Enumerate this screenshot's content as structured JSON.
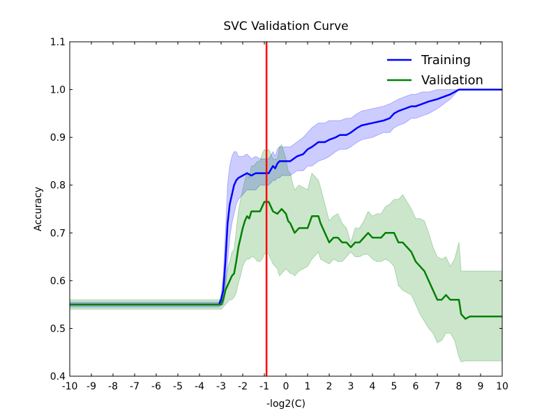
{
  "chart_data": {
    "type": "line",
    "title": "SVC Validation Curve",
    "xlabel": "-log2(C)",
    "ylabel": "Accuracy",
    "xlim": [
      -10,
      10
    ],
    "ylim": [
      0.4,
      1.1
    ],
    "grid": false,
    "legend_position": "top-right",
    "x_ticks": [
      -10,
      -9,
      -8,
      -7,
      -6,
      -5,
      -4,
      -3,
      -2,
      -1,
      0,
      1,
      2,
      3,
      4,
      5,
      6,
      7,
      8,
      9,
      10
    ],
    "x_tick_labels": [
      "-10",
      "-9",
      "-8",
      "-7",
      "-6",
      "-5",
      "-4",
      "-3",
      "-2",
      "-1",
      "0",
      "1",
      "2",
      "3",
      "4",
      "5",
      "6",
      "7",
      "8",
      "9",
      "10"
    ],
    "y_ticks": [
      0.4,
      0.5,
      0.6,
      0.7,
      0.8,
      0.9,
      1.0,
      1.1
    ],
    "y_tick_labels": [
      "0.4",
      "0.5",
      "0.6",
      "0.7",
      "0.8",
      "0.9",
      "1.0",
      "1.1"
    ],
    "vline": {
      "x": -0.9,
      "color": "#ff0000"
    },
    "series": [
      {
        "name": "Training",
        "color": "#0000ff",
        "band_color": "#0000ff",
        "x": [
          -10,
          -3.1,
          -3.0,
          -2.9,
          -2.8,
          -2.7,
          -2.6,
          -2.5,
          -2.4,
          -2.3,
          -2.2,
          -2.0,
          -1.8,
          -1.6,
          -1.4,
          -1.2,
          -1.0,
          -0.8,
          -0.6,
          -0.5,
          -0.4,
          -0.3,
          -0.2,
          0.0,
          0.2,
          0.5,
          0.8,
          1.0,
          1.2,
          1.5,
          1.8,
          2.0,
          2.3,
          2.5,
          2.8,
          3.0,
          3.3,
          3.5,
          4.0,
          4.5,
          4.8,
          5.0,
          5.2,
          5.5,
          5.8,
          6.0,
          6.3,
          6.6,
          7.0,
          7.3,
          7.6,
          8.0,
          8.5,
          9.0,
          10.0
        ],
        "values": [
          0.55,
          0.55,
          0.56,
          0.58,
          0.64,
          0.72,
          0.76,
          0.78,
          0.8,
          0.81,
          0.815,
          0.82,
          0.825,
          0.82,
          0.825,
          0.825,
          0.825,
          0.825,
          0.84,
          0.835,
          0.845,
          0.85,
          0.85,
          0.85,
          0.85,
          0.86,
          0.865,
          0.875,
          0.88,
          0.89,
          0.89,
          0.895,
          0.9,
          0.905,
          0.905,
          0.91,
          0.92,
          0.925,
          0.93,
          0.935,
          0.94,
          0.95,
          0.955,
          0.96,
          0.965,
          0.965,
          0.97,
          0.975,
          0.98,
          0.985,
          0.99,
          1.0,
          1.0,
          1.0,
          1.0
        ],
        "lower": [
          0.545,
          0.545,
          0.548,
          0.55,
          0.58,
          0.64,
          0.69,
          0.72,
          0.74,
          0.76,
          0.77,
          0.78,
          0.79,
          0.79,
          0.79,
          0.8,
          0.8,
          0.8,
          0.81,
          0.81,
          0.815,
          0.815,
          0.82,
          0.82,
          0.82,
          0.83,
          0.83,
          0.84,
          0.84,
          0.85,
          0.855,
          0.86,
          0.87,
          0.875,
          0.875,
          0.88,
          0.89,
          0.895,
          0.9,
          0.91,
          0.91,
          0.92,
          0.925,
          0.93,
          0.94,
          0.94,
          0.945,
          0.95,
          0.96,
          0.97,
          0.98,
          1.0,
          1.0,
          1.0,
          1.0
        ],
        "upper": [
          0.555,
          0.555,
          0.57,
          0.61,
          0.7,
          0.8,
          0.84,
          0.86,
          0.87,
          0.87,
          0.86,
          0.86,
          0.865,
          0.855,
          0.86,
          0.855,
          0.855,
          0.855,
          0.87,
          0.86,
          0.875,
          0.88,
          0.88,
          0.88,
          0.88,
          0.89,
          0.9,
          0.91,
          0.92,
          0.93,
          0.93,
          0.935,
          0.935,
          0.935,
          0.94,
          0.94,
          0.95,
          0.955,
          0.96,
          0.965,
          0.97,
          0.975,
          0.98,
          0.985,
          0.99,
          0.99,
          0.995,
          0.995,
          1.0,
          1.0,
          1.0,
          1.0,
          1.0,
          1.0,
          1.0
        ]
      },
      {
        "name": "Validation",
        "color": "#008000",
        "band_color": "#008000",
        "x": [
          -10,
          -3.0,
          -2.9,
          -2.8,
          -2.7,
          -2.6,
          -2.5,
          -2.4,
          -2.3,
          -2.2,
          -2.1,
          -2.0,
          -1.9,
          -1.8,
          -1.7,
          -1.6,
          -1.5,
          -1.4,
          -1.3,
          -1.2,
          -1.1,
          -1.0,
          -0.9,
          -0.8,
          -0.6,
          -0.4,
          -0.3,
          -0.2,
          -0.1,
          0.0,
          0.1,
          0.2,
          0.3,
          0.4,
          0.6,
          0.8,
          1.0,
          1.2,
          1.5,
          1.6,
          1.8,
          2.0,
          2.2,
          2.4,
          2.6,
          2.8,
          3.0,
          3.2,
          3.4,
          3.6,
          3.8,
          4.0,
          4.2,
          4.4,
          4.6,
          4.8,
          5.0,
          5.2,
          5.4,
          5.6,
          5.8,
          6.0,
          6.2,
          6.4,
          6.6,
          6.8,
          7.0,
          7.2,
          7.4,
          7.6,
          7.8,
          8.0,
          8.1,
          8.3,
          8.5,
          9.0,
          10.0
        ],
        "values": [
          0.55,
          0.55,
          0.56,
          0.58,
          0.59,
          0.6,
          0.61,
          0.615,
          0.64,
          0.67,
          0.69,
          0.71,
          0.725,
          0.735,
          0.73,
          0.745,
          0.745,
          0.745,
          0.745,
          0.745,
          0.755,
          0.765,
          0.765,
          0.765,
          0.745,
          0.74,
          0.745,
          0.75,
          0.745,
          0.74,
          0.725,
          0.72,
          0.71,
          0.7,
          0.71,
          0.71,
          0.71,
          0.735,
          0.735,
          0.72,
          0.7,
          0.68,
          0.69,
          0.69,
          0.68,
          0.68,
          0.67,
          0.68,
          0.68,
          0.69,
          0.7,
          0.69,
          0.69,
          0.69,
          0.7,
          0.7,
          0.7,
          0.68,
          0.68,
          0.67,
          0.66,
          0.64,
          0.63,
          0.62,
          0.6,
          0.58,
          0.56,
          0.56,
          0.57,
          0.56,
          0.56,
          0.56,
          0.53,
          0.52,
          0.525,
          0.525,
          0.525
        ],
        "lower": [
          0.54,
          0.54,
          0.545,
          0.55,
          0.555,
          0.56,
          0.56,
          0.565,
          0.575,
          0.595,
          0.61,
          0.63,
          0.64,
          0.645,
          0.645,
          0.65,
          0.65,
          0.645,
          0.64,
          0.64,
          0.645,
          0.655,
          0.66,
          0.655,
          0.635,
          0.625,
          0.61,
          0.615,
          0.62,
          0.625,
          0.62,
          0.615,
          0.615,
          0.61,
          0.62,
          0.625,
          0.63,
          0.645,
          0.66,
          0.645,
          0.64,
          0.635,
          0.645,
          0.64,
          0.64,
          0.65,
          0.66,
          0.65,
          0.65,
          0.655,
          0.655,
          0.645,
          0.64,
          0.64,
          0.645,
          0.64,
          0.63,
          0.59,
          0.58,
          0.575,
          0.57,
          0.55,
          0.53,
          0.515,
          0.5,
          0.49,
          0.47,
          0.475,
          0.49,
          0.49,
          0.475,
          0.44,
          0.43,
          0.432,
          0.432,
          0.432,
          0.432
        ],
        "upper": [
          0.56,
          0.56,
          0.575,
          0.605,
          0.625,
          0.64,
          0.66,
          0.665,
          0.705,
          0.745,
          0.77,
          0.79,
          0.81,
          0.825,
          0.815,
          0.84,
          0.84,
          0.845,
          0.85,
          0.85,
          0.865,
          0.875,
          0.87,
          0.875,
          0.855,
          0.855,
          0.88,
          0.885,
          0.87,
          0.855,
          0.83,
          0.825,
          0.805,
          0.79,
          0.8,
          0.795,
          0.79,
          0.825,
          0.81,
          0.795,
          0.76,
          0.725,
          0.735,
          0.74,
          0.72,
          0.71,
          0.68,
          0.71,
          0.71,
          0.725,
          0.745,
          0.735,
          0.74,
          0.74,
          0.755,
          0.76,
          0.77,
          0.77,
          0.78,
          0.765,
          0.75,
          0.73,
          0.73,
          0.725,
          0.7,
          0.67,
          0.65,
          0.645,
          0.65,
          0.63,
          0.645,
          0.68,
          0.62,
          0.62,
          0.62,
          0.62,
          0.62
        ]
      }
    ]
  }
}
